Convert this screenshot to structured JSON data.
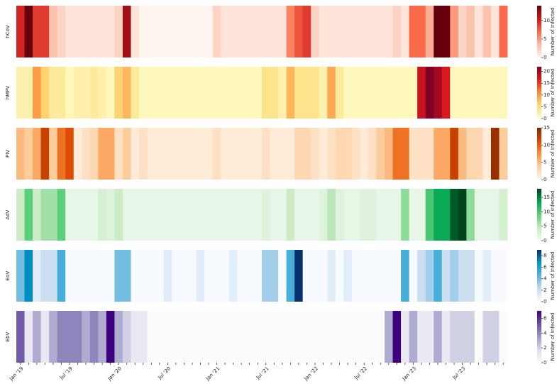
{
  "chart_data": [
    {
      "type": "heatmap",
      "ylabel": "hCoV",
      "colorbar_label": "Number of Infected",
      "zlim": [
        0,
        14
      ],
      "zticks": [
        0,
        5,
        10
      ],
      "colors": [
        "#fff5f0",
        "#fcbba1",
        "#fb6a4a",
        "#cb181d",
        "#67000d"
      ],
      "values": [
        10,
        14,
        9,
        9,
        3,
        2,
        1,
        1,
        1,
        1,
        1,
        1,
        2,
        12,
        1,
        0,
        0,
        0,
        0,
        0,
        0,
        0,
        0,
        0,
        2,
        1,
        1,
        1,
        1,
        1,
        1,
        1,
        1,
        6,
        8,
        9,
        2,
        1,
        1,
        1,
        1,
        1,
        1,
        1,
        1,
        1,
        2,
        1,
        7,
        7,
        4,
        14,
        14,
        5,
        2,
        3,
        1,
        3,
        1,
        7
      ]
    },
    {
      "type": "heatmap",
      "ylabel": "hMPV",
      "colorbar_label": "Number of Infected",
      "zlim": [
        0,
        22
      ],
      "zticks": [
        0,
        5,
        10,
        15,
        20
      ],
      "colors": [
        "#ffffcc",
        "#fed976",
        "#fd8d3c",
        "#e31a1c",
        "#800026"
      ],
      "values": [
        2,
        2,
        10,
        6,
        3,
        3,
        1,
        2,
        2,
        3,
        2,
        1,
        6,
        8,
        3,
        1,
        1,
        1,
        1,
        1,
        1,
        1,
        1,
        1,
        1,
        1,
        1,
        1,
        1,
        1,
        4,
        4,
        2,
        8,
        4,
        4,
        4,
        2,
        9,
        3,
        1,
        1,
        1,
        1,
        1,
        1,
        1,
        1,
        1,
        18,
        22,
        20,
        17,
        1,
        1,
        1,
        1,
        1,
        1,
        1
      ]
    },
    {
      "type": "heatmap",
      "ylabel": "PIV",
      "colorbar_label": "Number of Infected",
      "zlim": [
        0,
        15
      ],
      "zticks": [
        0,
        5,
        10,
        15
      ],
      "colors": [
        "#fff5eb",
        "#fdd0a2",
        "#fd8d3c",
        "#d94801",
        "#7f2704"
      ],
      "values": [
        5,
        4,
        6,
        12,
        4,
        9,
        11,
        1,
        2,
        3,
        6,
        6,
        2,
        4,
        1,
        2,
        1,
        1,
        1,
        1,
        1,
        1,
        1,
        1,
        2,
        1,
        1,
        1,
        1,
        1,
        2,
        1,
        1,
        1,
        3,
        3,
        2,
        1,
        2,
        3,
        3,
        2,
        1,
        2,
        4,
        5,
        9,
        9,
        2,
        2,
        2,
        6,
        6,
        12,
        5,
        3,
        3,
        1,
        14,
        4
      ]
    },
    {
      "type": "heatmap",
      "ylabel": "AdV",
      "colorbar_label": "Number of Infected",
      "zlim": [
        0,
        18
      ],
      "zticks": [
        0,
        5,
        10,
        15
      ],
      "colors": [
        "#f2faf2",
        "#c7e9c0",
        "#5ccf7a",
        "#00a651",
        "#00441b"
      ],
      "values": [
        4,
        9,
        4,
        6,
        6,
        9,
        1,
        1,
        1,
        1,
        3,
        2,
        4,
        1,
        1,
        1,
        1,
        1,
        1,
        1,
        1,
        1,
        1,
        1,
        1,
        1,
        1,
        1,
        1,
        1,
        2,
        1,
        1,
        4,
        1,
        1,
        1,
        2,
        5,
        2,
        1,
        1,
        2,
        2,
        1,
        1,
        1,
        7,
        1,
        1,
        10,
        13,
        13,
        17,
        18,
        7,
        1,
        1,
        1,
        3
      ]
    },
    {
      "type": "heatmap",
      "ylabel": "EoV",
      "colorbar_label": "Number of Infected",
      "zlim": [
        0,
        9
      ],
      "zticks": [
        0,
        2,
        4,
        6,
        8
      ],
      "colors": [
        "#f7fbff",
        "#c6dbef",
        "#5ab4dc",
        "#0099cc",
        "#08306b"
      ],
      "values": [
        4,
        7,
        1,
        2,
        2,
        5,
        0,
        0,
        0,
        0,
        0,
        0,
        4,
        4,
        0,
        0,
        0,
        0,
        1,
        0,
        0,
        0,
        1,
        0,
        0,
        0,
        1,
        0,
        0,
        0,
        3,
        3,
        0,
        5,
        9,
        0,
        0,
        0,
        1,
        0,
        1,
        0,
        0,
        0,
        0,
        0,
        0,
        5,
        0,
        2,
        3,
        5,
        2,
        3,
        2,
        2,
        0,
        1,
        0,
        0
      ]
    },
    {
      "type": "heatmap",
      "ylabel": "EbV",
      "colorbar_label": "Number of Infected",
      "zlim": [
        0,
        7
      ],
      "zticks": [
        0,
        2,
        4,
        6
      ],
      "colors": [
        "#fcfbfd",
        "#dadaeb",
        "#9e9ac8",
        "#6a51a3",
        "#3f007d"
      ],
      "values": [
        5,
        1,
        3,
        1,
        3,
        4,
        4,
        4,
        3,
        4,
        3,
        7,
        3,
        2,
        1,
        1,
        0,
        0,
        0,
        0,
        0,
        0,
        0,
        0,
        0,
        0,
        0,
        0,
        0,
        0,
        0,
        0,
        0,
        0,
        0,
        0,
        0,
        0,
        0,
        0,
        0,
        0,
        0,
        0,
        0,
        3,
        7,
        1,
        3,
        1,
        1,
        3,
        1,
        2,
        2,
        2,
        0,
        2,
        2,
        0
      ],
      "categories": [
        "Jan '19",
        null,
        null,
        null,
        null,
        null,
        "Jul '19",
        null,
        null,
        null,
        null,
        null,
        "Jan '20",
        null,
        null,
        null,
        null,
        null,
        "Jul '20",
        null,
        null,
        null,
        null,
        null,
        "Jan '21",
        null,
        null,
        null,
        null,
        null,
        "Jul '21",
        null,
        null,
        null,
        null,
        null,
        "Jan '22",
        null,
        null,
        null,
        null,
        null,
        "Jul '22",
        null,
        null,
        null,
        null,
        null,
        "Jan '23",
        null,
        null,
        null,
        null,
        null,
        "Jul '23",
        null,
        null,
        null,
        null,
        null
      ]
    }
  ]
}
